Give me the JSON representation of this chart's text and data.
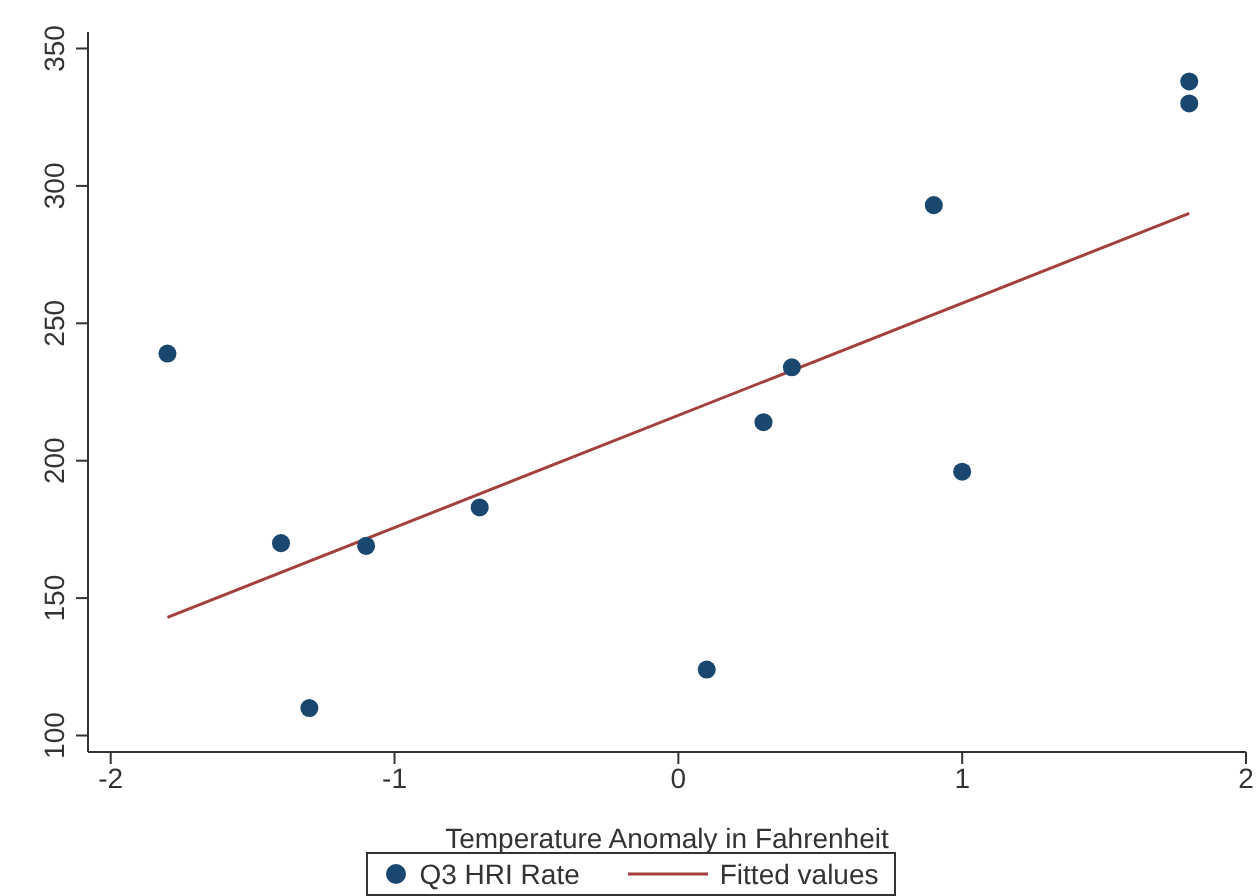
{
  "chart_data": {
    "type": "scatter",
    "xlabel": "Temperature Anomaly in Fahrenheit",
    "xlim": [
      -2.08,
      2.0
    ],
    "xticks": [
      -2,
      -1,
      0,
      1,
      2
    ],
    "ylim": [
      94,
      356
    ],
    "yticks": [
      100,
      150,
      200,
      250,
      300,
      350
    ],
    "grid": false,
    "legend": "bottom",
    "series": [
      {
        "name": "Q3 HRI Rate",
        "marker": "circle",
        "color": "#1a476f",
        "x": [
          -1.8,
          -1.4,
          -1.3,
          -1.1,
          -0.7,
          0.1,
          0.3,
          0.4,
          0.9,
          1.0,
          1.8,
          1.8
        ],
        "values": [
          239,
          170,
          110,
          169,
          183,
          124,
          214,
          234,
          293,
          196,
          338,
          330
        ]
      },
      {
        "name": "Fitted values",
        "type": "line",
        "color": "#a4403c",
        "line_style": "solid",
        "x": [
          -1.8,
          1.8
        ],
        "values": [
          143,
          290
        ]
      }
    ]
  }
}
